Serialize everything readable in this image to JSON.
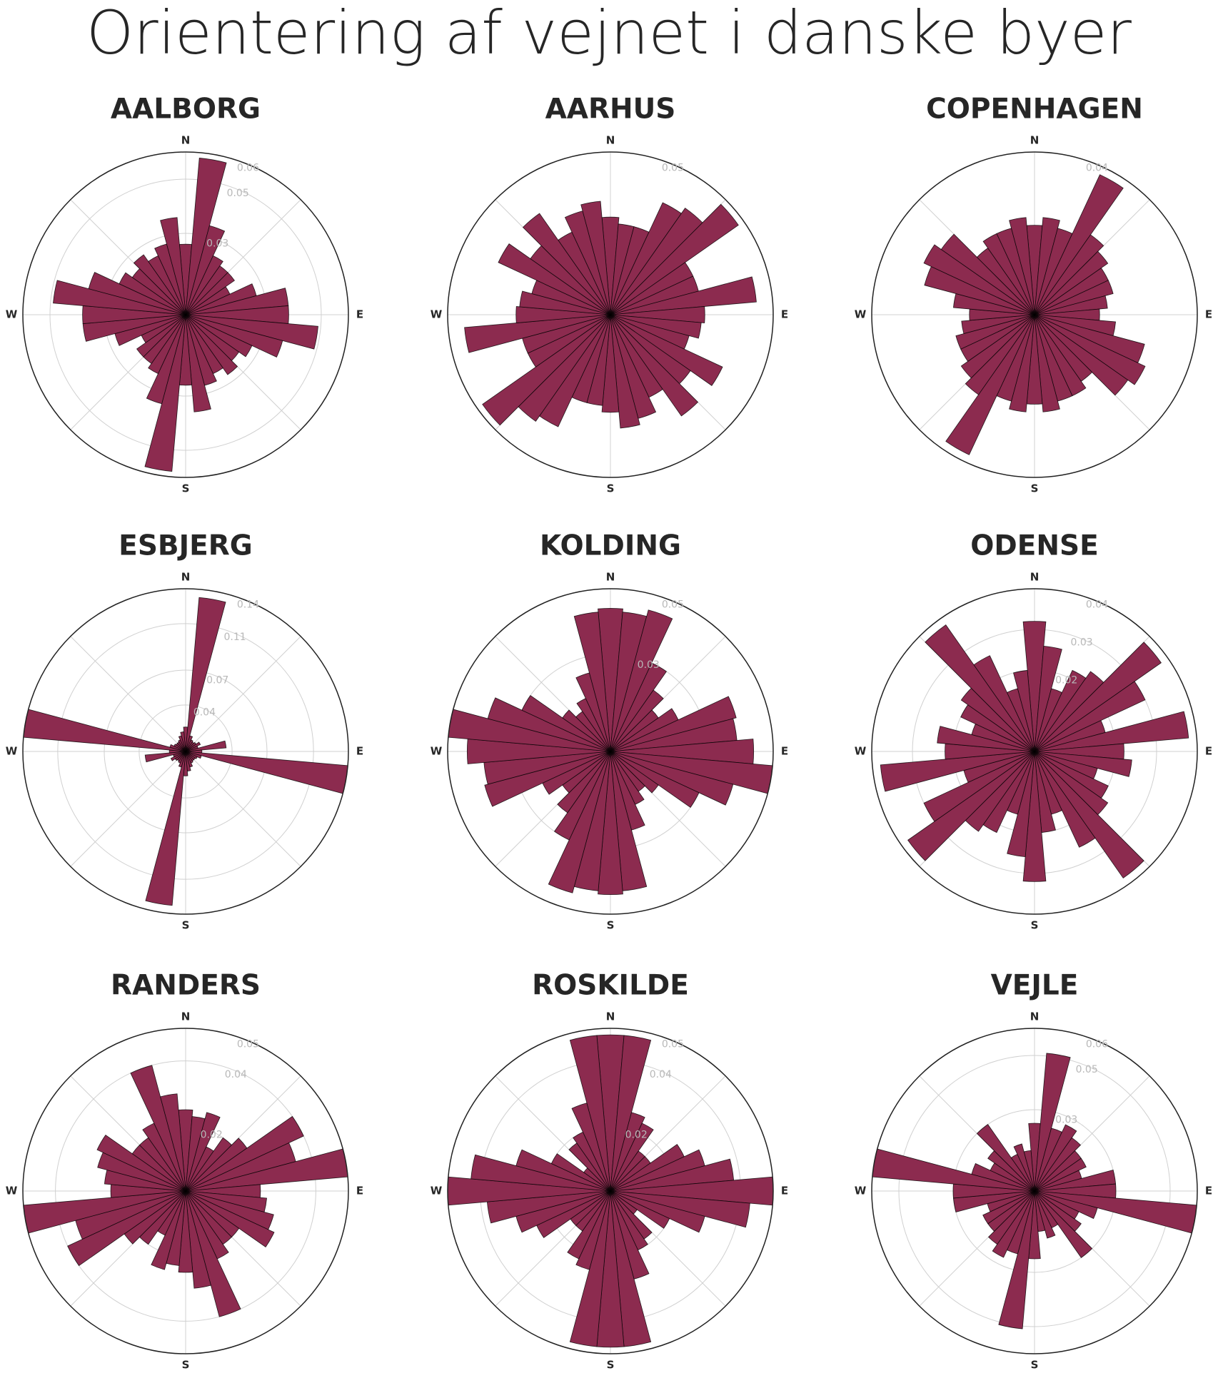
{
  "title": "Orientering af vejnet i danske byer",
  "chart_data": [
    {
      "type": "polar-bar",
      "title": "AALBORG",
      "directions": [
        "N",
        "E",
        "S",
        "W"
      ],
      "color": "#8c2b4f",
      "theta": [
        0,
        10,
        20,
        30,
        40,
        50,
        60,
        70,
        80,
        90,
        100,
        110,
        120,
        130,
        140,
        150,
        160,
        170,
        180,
        190,
        200,
        210,
        220,
        230,
        240,
        250,
        260,
        270,
        280,
        290,
        300,
        310,
        320,
        330,
        340,
        350
      ],
      "values": [
        0.026,
        0.058,
        0.034,
        0.024,
        0.022,
        0.022,
        0.018,
        0.027,
        0.038,
        0.038,
        0.049,
        0.037,
        0.027,
        0.024,
        0.027,
        0.024,
        0.027,
        0.036,
        0.026,
        0.058,
        0.034,
        0.024,
        0.022,
        0.022,
        0.018,
        0.027,
        0.038,
        0.038,
        0.049,
        0.037,
        0.027,
        0.024,
        0.027,
        0.024,
        0.027,
        0.036
      ],
      "rlim": [
        0,
        0.06
      ],
      "rticks": [
        0.03,
        0.05,
        0.06
      ]
    },
    {
      "type": "polar-bar",
      "title": "AARHUS",
      "directions": [
        "N",
        "E",
        "S",
        "W"
      ],
      "color": "#8c2b4f",
      "theta": [
        0,
        10,
        20,
        30,
        40,
        50,
        60,
        70,
        80,
        90,
        100,
        110,
        120,
        130,
        140,
        150,
        160,
        170,
        180,
        190,
        200,
        210,
        220,
        230,
        240,
        250,
        260,
        270,
        280,
        290,
        300,
        310,
        320,
        330,
        340,
        350
      ],
      "values": [
        0.03,
        0.028,
        0.028,
        0.038,
        0.04,
        0.048,
        0.028,
        0.028,
        0.045,
        0.029,
        0.028,
        0.025,
        0.038,
        0.03,
        0.038,
        0.028,
        0.033,
        0.035,
        0.03,
        0.028,
        0.028,
        0.038,
        0.04,
        0.048,
        0.028,
        0.028,
        0.045,
        0.029,
        0.028,
        0.025,
        0.038,
        0.03,
        0.038,
        0.028,
        0.033,
        0.035
      ],
      "rlim": [
        0,
        0.05
      ],
      "rticks": [
        0.05
      ]
    },
    {
      "type": "polar-bar",
      "title": "COPENHAGEN",
      "directions": [
        "N",
        "E",
        "S",
        "W"
      ],
      "color": "#8c2b4f",
      "theta": [
        0,
        10,
        20,
        30,
        40,
        50,
        60,
        70,
        80,
        90,
        100,
        110,
        120,
        130,
        140,
        150,
        160,
        170,
        180,
        190,
        200,
        210,
        220,
        230,
        240,
        250,
        260,
        270,
        280,
        290,
        300,
        310,
        320,
        330,
        340,
        350
      ],
      "values": [
        0.022,
        0.024,
        0.022,
        0.038,
        0.024,
        0.022,
        0.02,
        0.02,
        0.018,
        0.016,
        0.02,
        0.028,
        0.03,
        0.028,
        0.02,
        0.022,
        0.022,
        0.024,
        0.022,
        0.024,
        0.022,
        0.038,
        0.024,
        0.022,
        0.02,
        0.02,
        0.018,
        0.016,
        0.02,
        0.028,
        0.03,
        0.028,
        0.02,
        0.022,
        0.022,
        0.024
      ],
      "rlim": [
        0,
        0.04
      ],
      "rticks": [
        0.04
      ]
    },
    {
      "type": "polar-bar",
      "title": "ESBJERG",
      "directions": [
        "N",
        "E",
        "S",
        "W"
      ],
      "color": "#8c2b4f",
      "theta": [
        0,
        10,
        20,
        30,
        40,
        50,
        60,
        70,
        80,
        90,
        100,
        110,
        120,
        130,
        140,
        150,
        160,
        170,
        180,
        190,
        200,
        210,
        220,
        230,
        240,
        250,
        260,
        270,
        280,
        290,
        300,
        310,
        320,
        330,
        340,
        350
      ],
      "values": [
        0.021,
        0.133,
        0.014,
        0.011,
        0.01,
        0.011,
        0.014,
        0.011,
        0.035,
        0.014,
        0.14,
        0.014,
        0.011,
        0.01,
        0.01,
        0.011,
        0.014,
        0.017,
        0.021,
        0.133,
        0.014,
        0.011,
        0.01,
        0.011,
        0.014,
        0.011,
        0.035,
        0.014,
        0.14,
        0.014,
        0.011,
        0.01,
        0.01,
        0.011,
        0.014,
        0.017
      ],
      "rlim": [
        0,
        0.14
      ],
      "rticks": [
        0.04,
        0.07,
        0.11,
        0.14
      ]
    },
    {
      "type": "polar-bar",
      "title": "KOLDING",
      "directions": [
        "N",
        "E",
        "S",
        "W"
      ],
      "color": "#8c2b4f",
      "theta": [
        0,
        10,
        20,
        30,
        40,
        50,
        60,
        70,
        80,
        90,
        100,
        110,
        120,
        130,
        140,
        150,
        160,
        170,
        180,
        190,
        200,
        210,
        220,
        230,
        240,
        250,
        260,
        270,
        280,
        290,
        300,
        310,
        320,
        330,
        340,
        350
      ],
      "values": [
        0.044,
        0.043,
        0.045,
        0.03,
        0.023,
        0.018,
        0.023,
        0.04,
        0.039,
        0.044,
        0.05,
        0.039,
        0.03,
        0.018,
        0.015,
        0.018,
        0.025,
        0.043,
        0.044,
        0.043,
        0.045,
        0.03,
        0.023,
        0.018,
        0.023,
        0.04,
        0.039,
        0.044,
        0.05,
        0.039,
        0.03,
        0.018,
        0.015,
        0.018,
        0.025,
        0.043
      ],
      "rlim": [
        0,
        0.05
      ],
      "rticks": [
        0.03,
        0.05
      ]
    },
    {
      "type": "polar-bar",
      "title": "ODENSE",
      "directions": [
        "N",
        "E",
        "S",
        "W"
      ],
      "color": "#8c2b4f",
      "theta": [
        0,
        10,
        20,
        30,
        40,
        50,
        60,
        70,
        80,
        90,
        100,
        110,
        120,
        130,
        140,
        150,
        160,
        170,
        180,
        190,
        200,
        210,
        220,
        230,
        240,
        250,
        260,
        270,
        280,
        290,
        300,
        310,
        320,
        330,
        340,
        350
      ],
      "values": [
        0.032,
        0.026,
        0.016,
        0.022,
        0.024,
        0.038,
        0.03,
        0.018,
        0.038,
        0.022,
        0.024,
        0.016,
        0.02,
        0.022,
        0.038,
        0.026,
        0.016,
        0.02,
        0.032,
        0.026,
        0.016,
        0.022,
        0.024,
        0.038,
        0.03,
        0.018,
        0.038,
        0.022,
        0.024,
        0.016,
        0.02,
        0.022,
        0.038,
        0.026,
        0.016,
        0.02
      ],
      "rlim": [
        0,
        0.04
      ],
      "rticks": [
        0.02,
        0.03,
        0.04
      ]
    },
    {
      "type": "polar-bar",
      "title": "RANDERS",
      "directions": [
        "N",
        "E",
        "S",
        "W"
      ],
      "color": "#8c2b4f",
      "theta": [
        0,
        10,
        20,
        30,
        40,
        50,
        60,
        70,
        80,
        90,
        100,
        110,
        120,
        130,
        140,
        150,
        160,
        170,
        180,
        190,
        200,
        210,
        220,
        230,
        240,
        250,
        260,
        270,
        280,
        290,
        300,
        310,
        320,
        330,
        340,
        350
      ],
      "values": [
        0.025,
        0.023,
        0.025,
        0.015,
        0.02,
        0.023,
        0.04,
        0.035,
        0.05,
        0.023,
        0.025,
        0.028,
        0.03,
        0.02,
        0.02,
        0.023,
        0.04,
        0.03,
        0.025,
        0.023,
        0.025,
        0.015,
        0.02,
        0.023,
        0.04,
        0.035,
        0.05,
        0.023,
        0.025,
        0.028,
        0.03,
        0.02,
        0.02,
        0.023,
        0.04,
        0.03
      ],
      "rlim": [
        0,
        0.05
      ],
      "rticks": [
        0.02,
        0.04,
        0.05
      ]
    },
    {
      "type": "polar-bar",
      "title": "ROSKILDE",
      "directions": [
        "N",
        "E",
        "S",
        "W"
      ],
      "color": "#8c2b4f",
      "theta": [
        0,
        10,
        20,
        30,
        40,
        50,
        60,
        70,
        80,
        90,
        100,
        110,
        120,
        130,
        140,
        150,
        160,
        170,
        180,
        190,
        200,
        210,
        220,
        230,
        240,
        250,
        260,
        270,
        280,
        290,
        300,
        310,
        320,
        330,
        340,
        350
      ],
      "values": [
        0.048,
        0.048,
        0.025,
        0.023,
        0.015,
        0.015,
        0.025,
        0.03,
        0.038,
        0.05,
        0.043,
        0.03,
        0.02,
        0.01,
        0.018,
        0.02,
        0.028,
        0.048,
        0.048,
        0.048,
        0.025,
        0.023,
        0.015,
        0.015,
        0.025,
        0.03,
        0.038,
        0.05,
        0.043,
        0.03,
        0.02,
        0.01,
        0.018,
        0.02,
        0.028,
        0.048
      ],
      "rlim": [
        0,
        0.05
      ],
      "rticks": [
        0.02,
        0.04,
        0.05
      ]
    },
    {
      "type": "polar-bar",
      "title": "VEJLE",
      "directions": [
        "N",
        "E",
        "S",
        "W"
      ],
      "color": "#8c2b4f",
      "theta": [
        0,
        10,
        20,
        30,
        40,
        50,
        60,
        70,
        80,
        90,
        100,
        110,
        120,
        130,
        140,
        150,
        160,
        170,
        180,
        190,
        200,
        210,
        220,
        230,
        240,
        250,
        260,
        270,
        280,
        290,
        300,
        310,
        320,
        330,
        340,
        350
      ],
      "values": [
        0.025,
        0.051,
        0.024,
        0.027,
        0.024,
        0.021,
        0.021,
        0.018,
        0.03,
        0.03,
        0.06,
        0.024,
        0.018,
        0.021,
        0.03,
        0.015,
        0.018,
        0.015,
        0.025,
        0.051,
        0.024,
        0.027,
        0.024,
        0.021,
        0.021,
        0.018,
        0.03,
        0.03,
        0.06,
        0.024,
        0.018,
        0.021,
        0.03,
        0.015,
        0.018,
        0.015
      ],
      "rlim": [
        0,
        0.06
      ],
      "rticks": [
        0.03,
        0.05,
        0.06
      ]
    }
  ]
}
